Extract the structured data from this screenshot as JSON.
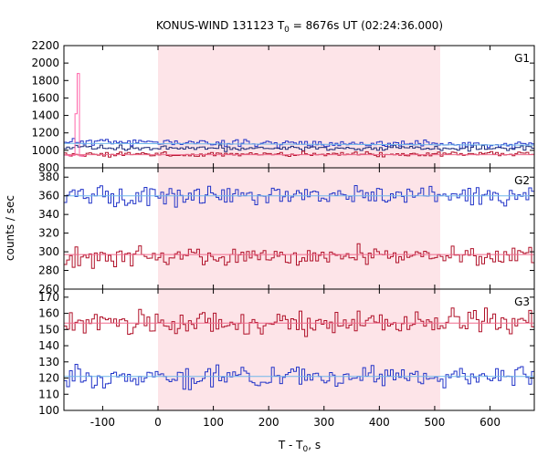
{
  "title": {
    "main": "KONUS-WIND 131123 T",
    "sub": "0",
    "rest": " = 8676s UT (02:24:36.000)"
  },
  "ylabel": "counts / sec",
  "xlabel": {
    "main": "T - T",
    "sub": "0",
    "rest": ", s"
  },
  "colors": {
    "shade": "#fde4e8",
    "blue": "#2133c8",
    "red": "#b01028",
    "blue_fit": "#6fb7ea",
    "red_fit": "#f06a8c",
    "pink": "#ff66aa",
    "dark_blue": "#1a2a7a"
  },
  "chart_data": [
    {
      "type": "line",
      "panel_label": "G1",
      "xlim": [
        -170,
        680
      ],
      "ylim": [
        800,
        2200
      ],
      "x_ticks": [],
      "y_ticks": [
        800,
        1000,
        1200,
        1400,
        1600,
        1800,
        2000,
        2200
      ],
      "shaded_interval": [
        0,
        510
      ],
      "series": [
        {
          "kind": "step",
          "color_key": "blue",
          "x_start": -170,
          "x_end": 680,
          "bin": 5,
          "mean": 1100,
          "amp": 28,
          "trend": -40,
          "seed": 11
        },
        {
          "kind": "step",
          "color_key": "dark_blue",
          "x_start": -170,
          "x_end": 680,
          "bin": 5,
          "mean": 1030,
          "amp": 22,
          "trend": -10,
          "seed": 12
        },
        {
          "kind": "step",
          "color_key": "red",
          "x_start": -170,
          "x_end": 680,
          "bin": 5,
          "mean": 955,
          "amp": 20,
          "trend": 0,
          "seed": 13
        },
        {
          "kind": "step",
          "color_key": "pink",
          "x_start": -170,
          "x_end": -130,
          "bin": 4,
          "mean": 940,
          "amp": 10,
          "trend": 0,
          "seed": 14,
          "spikes": [
            [
              -145,
              1880
            ],
            [
              -149,
              1420
            ]
          ]
        },
        {
          "kind": "fit",
          "color_key": "blue_fit",
          "x": [
            -170,
            680
          ],
          "y": [
            1080,
            1060
          ]
        },
        {
          "kind": "fit",
          "color_key": "red_fit",
          "x": [
            -170,
            680
          ],
          "y": [
            950,
            950
          ]
        }
      ]
    },
    {
      "type": "line",
      "panel_label": "G2",
      "xlim": [
        -170,
        680
      ],
      "ylim": [
        260,
        390
      ],
      "x_ticks": [],
      "y_ticks": [
        260,
        280,
        300,
        320,
        340,
        360,
        380
      ],
      "shaded_interval": [
        0,
        510
      ],
      "series": [
        {
          "kind": "step",
          "color_key": "blue",
          "x_start": -170,
          "x_end": 680,
          "bin": 5,
          "mean": 360,
          "amp": 7,
          "trend": 0,
          "seed": 21
        },
        {
          "kind": "step",
          "color_key": "red",
          "x_start": -170,
          "x_end": 680,
          "bin": 5,
          "mean": 295,
          "amp": 7,
          "trend": 0,
          "seed": 22
        },
        {
          "kind": "fit",
          "color_key": "blue_fit",
          "x": [
            -170,
            680
          ],
          "y": [
            360,
            360
          ]
        },
        {
          "kind": "fit",
          "color_key": "red_fit",
          "x": [
            -170,
            680
          ],
          "y": [
            297,
            297
          ]
        }
      ]
    },
    {
      "type": "line",
      "panel_label": "G3",
      "xlim": [
        -170,
        680
      ],
      "ylim": [
        100,
        175
      ],
      "x_ticks": [
        -100,
        0,
        100,
        200,
        300,
        400,
        500,
        600
      ],
      "y_ticks": [
        100,
        110,
        120,
        130,
        140,
        150,
        160,
        170
      ],
      "shaded_interval": [
        0,
        510
      ],
      "series": [
        {
          "kind": "step",
          "color_key": "red",
          "x_start": -170,
          "x_end": 680,
          "bin": 5,
          "mean": 154,
          "amp": 5,
          "trend": 0,
          "seed": 31
        },
        {
          "kind": "step",
          "color_key": "blue",
          "x_start": -170,
          "x_end": 680,
          "bin": 5,
          "mean": 121,
          "amp": 4.5,
          "trend": 0,
          "seed": 32
        },
        {
          "kind": "fit",
          "color_key": "red_fit",
          "x": [
            -170,
            680
          ],
          "y": [
            154,
            154
          ]
        },
        {
          "kind": "fit",
          "color_key": "blue_fit",
          "x": [
            -170,
            680
          ],
          "y": [
            121,
            121
          ]
        }
      ]
    }
  ]
}
